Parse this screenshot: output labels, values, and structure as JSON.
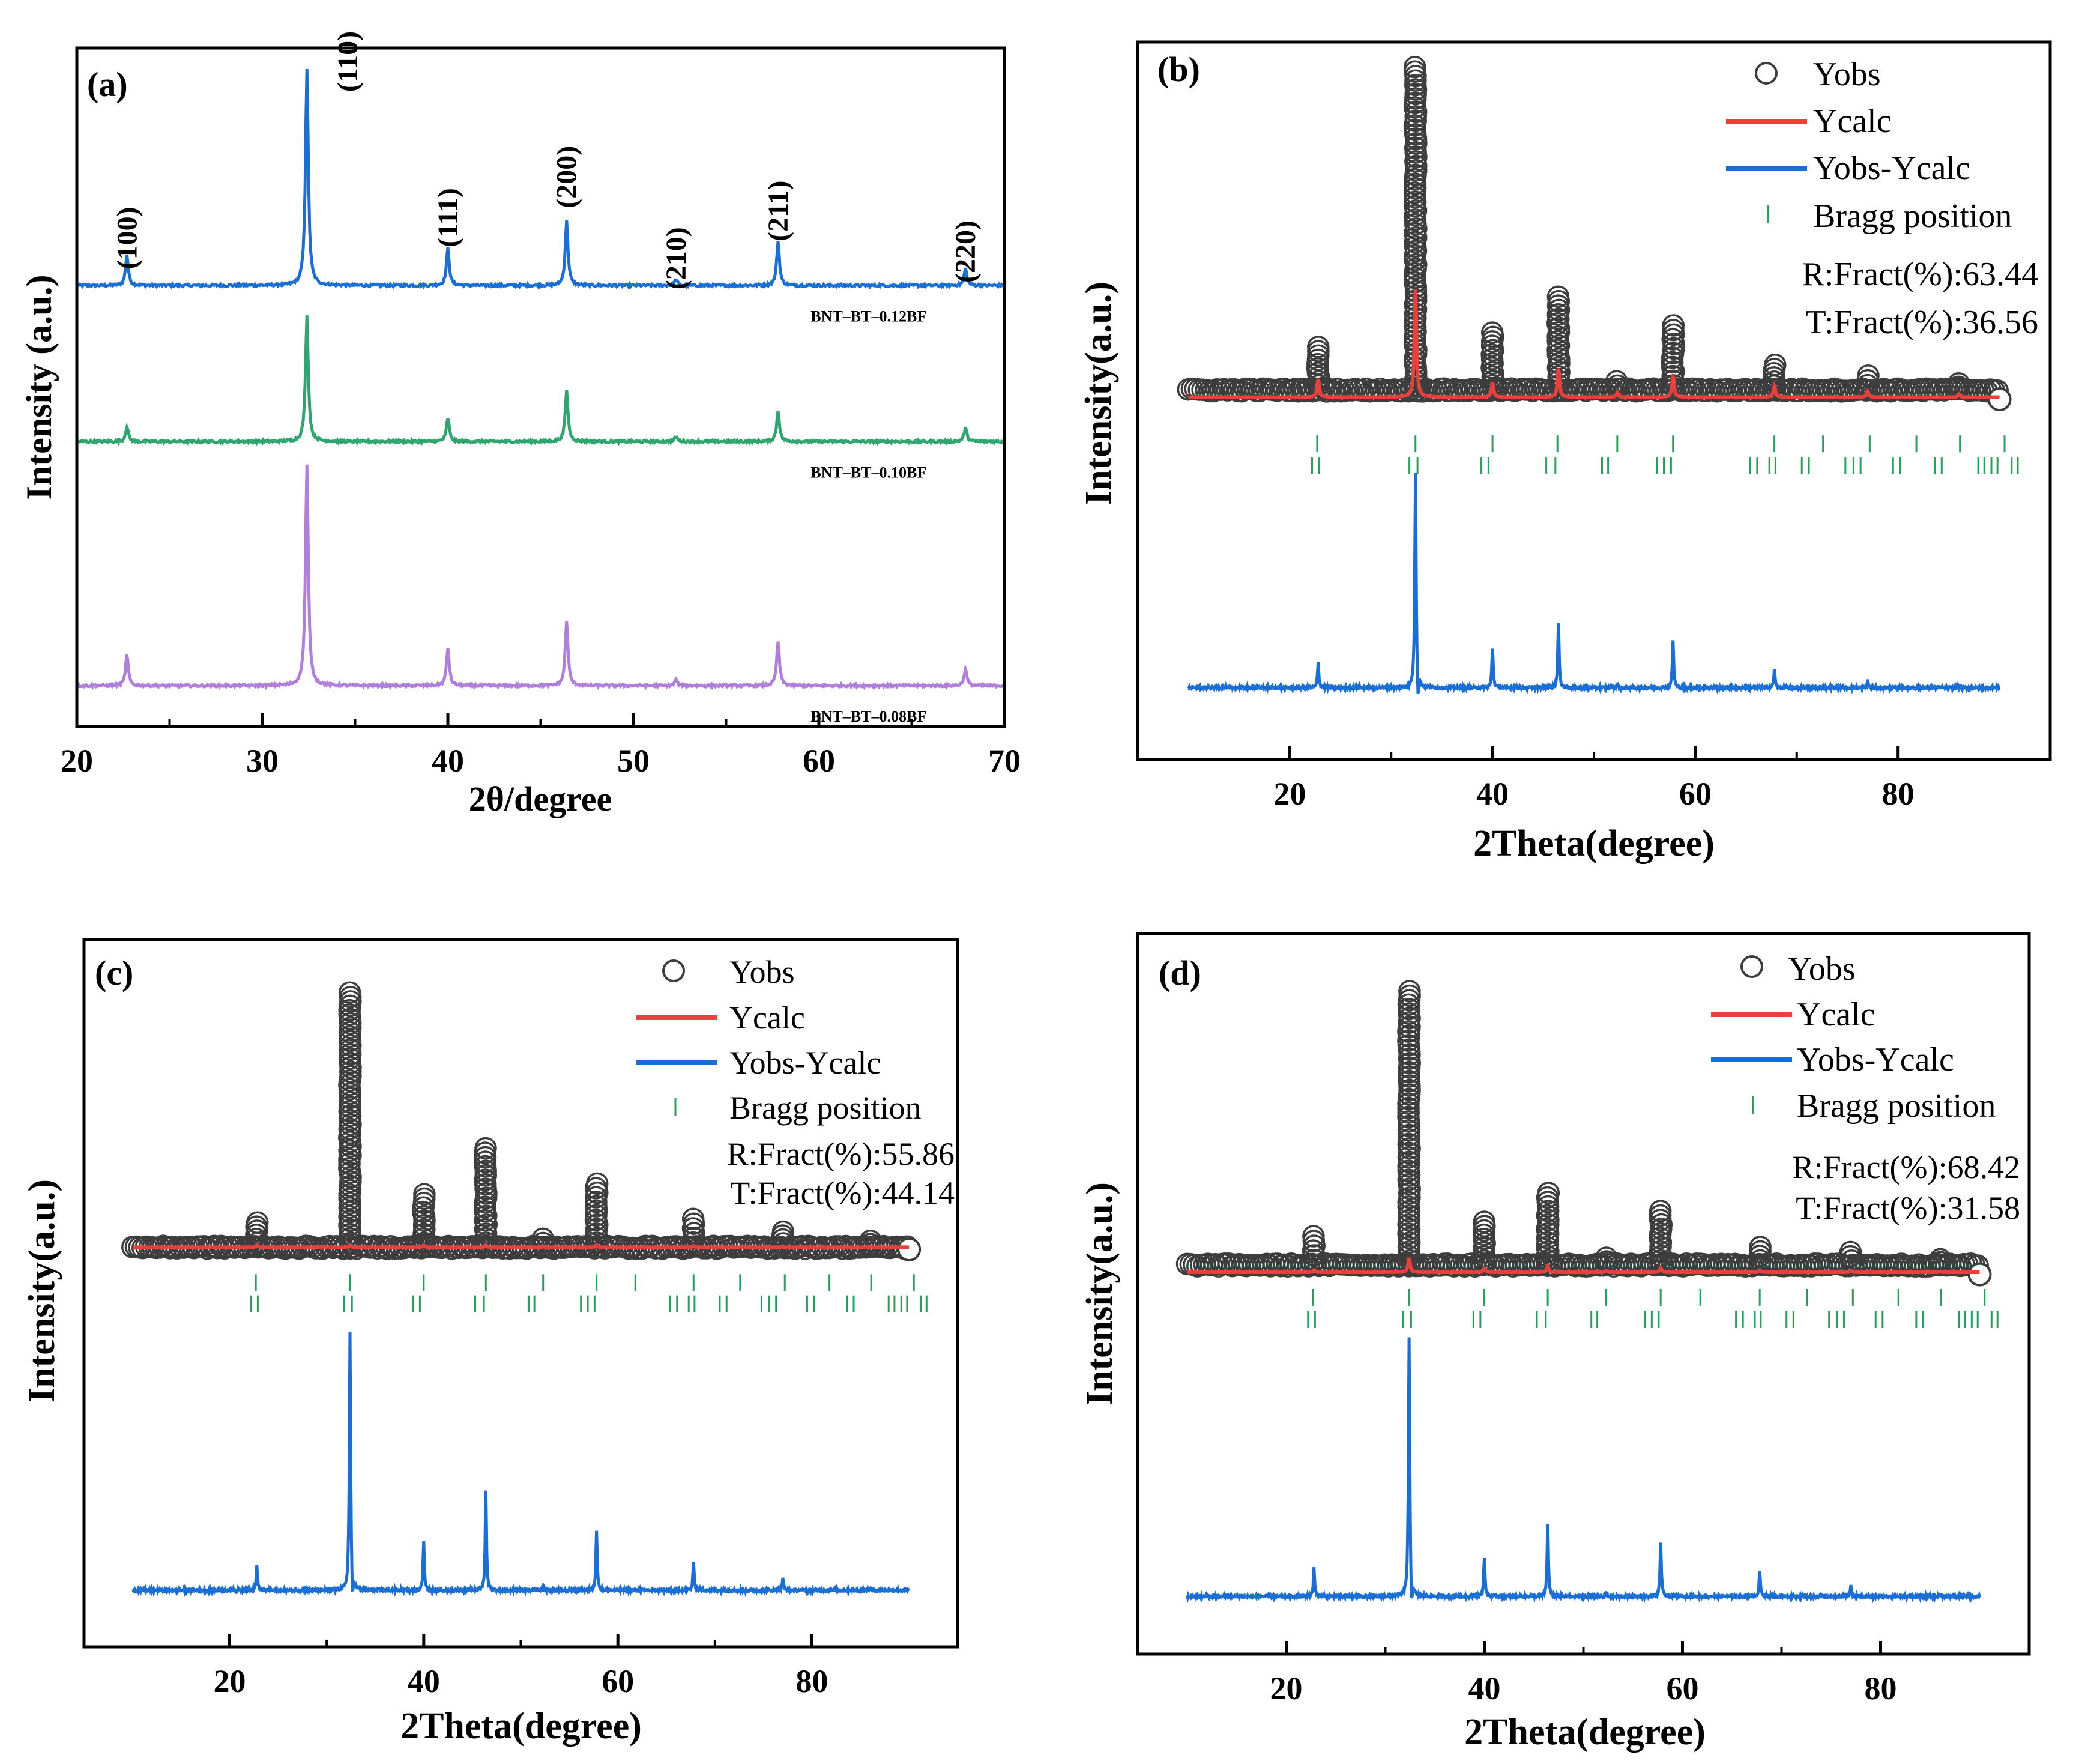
{
  "colors": {
    "blue": "#1a6fd6",
    "green": "#2fa56f",
    "purple": "#b07fdc",
    "red": "#e8413c",
    "obs": "#3d3d3d",
    "bragg": "#23a15a",
    "axis": "#000000"
  },
  "chart_data": [
    {
      "id": "a",
      "type": "line",
      "panel_label": "(a)",
      "title": "",
      "xlabel": "2θ/degree",
      "ylabel": "Intensity (a.u.)",
      "xlim": [
        20,
        70
      ],
      "xticks": [
        20,
        30,
        40,
        50,
        60,
        70
      ],
      "ylim": [
        0,
        100
      ],
      "y_ticks_labeled": false,
      "grid": false,
      "series": [
        {
          "name": "BNT–BT–0.12BF",
          "color_key": "blue",
          "baseline": 65,
          "peaks": [
            {
              "x": 22.7,
              "h": 4.5
            },
            {
              "x": 32.4,
              "h": 32
            },
            {
              "x": 40.0,
              "h": 5.5
            },
            {
              "x": 46.4,
              "h": 9.5
            },
            {
              "x": 52.3,
              "h": 0.9
            },
            {
              "x": 57.8,
              "h": 6.5
            },
            {
              "x": 67.9,
              "h": 2.5
            }
          ]
        },
        {
          "name": "BNT–BT–0.10BF",
          "color_key": "green",
          "baseline": 42,
          "peaks": [
            {
              "x": 22.7,
              "h": 2.2
            },
            {
              "x": 32.4,
              "h": 18.5
            },
            {
              "x": 40.0,
              "h": 3.5
            },
            {
              "x": 46.4,
              "h": 7.5
            },
            {
              "x": 52.3,
              "h": 0.7
            },
            {
              "x": 57.8,
              "h": 4.5
            },
            {
              "x": 67.9,
              "h": 2
            }
          ]
        },
        {
          "name": "BNT–BT–0.08BF",
          "color_key": "purple",
          "baseline": 6,
          "peaks": [
            {
              "x": 22.7,
              "h": 4.5
            },
            {
              "x": 32.4,
              "h": 32.5
            },
            {
              "x": 40.0,
              "h": 5.5
            },
            {
              "x": 46.4,
              "h": 9.5
            },
            {
              "x": 52.3,
              "h": 0.9
            },
            {
              "x": 57.8,
              "h": 6.5
            },
            {
              "x": 67.9,
              "h": 2.5
            }
          ]
        }
      ],
      "annotations": [
        {
          "text": "(100)",
          "x": 22.7,
          "y": 72
        },
        {
          "text": "(110)",
          "x": 34.6,
          "y": 98
        },
        {
          "text": "(111)",
          "x": 40.0,
          "y": 75
        },
        {
          "text": "(200)",
          "x": 46.4,
          "y": 81
        },
        {
          "text": "(210)",
          "x": 52.3,
          "y": 69
        },
        {
          "text": "(211)",
          "x": 57.8,
          "y": 76
        },
        {
          "text": "(220)",
          "x": 67.9,
          "y": 70
        }
      ]
    },
    {
      "id": "b",
      "type": "line",
      "panel_label": "(b)",
      "xlabel": "2Theta(degree)",
      "ylabel": "Intensity(a.u.)",
      "xlim": [
        5,
        95
      ],
      "xticks": [
        20,
        40,
        60,
        80
      ],
      "ylim": [
        0,
        100
      ],
      "y_ticks_labeled": false,
      "legend": [
        "Yobs",
        "Ycalc",
        "Yobs-Ycalc",
        "Bragg position"
      ],
      "legend_position": "top-right",
      "fractions": [
        "R:Fract(%):63.44",
        "T:Fract(%):36.56"
      ],
      "x_range": [
        10,
        90
      ],
      "obs_baseline": 51.5,
      "calc_baseline": 50.5,
      "diff_baseline": 10,
      "peaks": [
        {
          "x": 22.8,
          "obs": 6,
          "calc": 2.5,
          "diff": 3.5
        },
        {
          "x": 32.4,
          "obs": 45,
          "calc": 15,
          "diff": 30
        },
        {
          "x": 40.0,
          "obs": 8,
          "calc": 2,
          "diff": 5.5
        },
        {
          "x": 46.5,
          "obs": 13,
          "calc": 4,
          "diff": 9
        },
        {
          "x": 52.3,
          "obs": 1.2,
          "calc": 0.6,
          "diff": 0.5
        },
        {
          "x": 57.8,
          "obs": 9,
          "calc": 3,
          "diff": 6.5
        },
        {
          "x": 67.8,
          "obs": 3.5,
          "calc": 1.5,
          "diff": 2.5
        },
        {
          "x": 77.0,
          "obs": 2,
          "calc": 0.8,
          "diff": 1
        },
        {
          "x": 86.0,
          "obs": 0.9,
          "calc": 0.4,
          "diff": 0.3
        }
      ],
      "bragg_rows_y": [
        44,
        41
      ],
      "bragg_phase1": [
        22.7,
        32.4,
        40.0,
        46.4,
        52.3,
        57.8,
        67.8,
        72.6,
        77.2,
        81.8,
        86.1,
        90.5
      ],
      "bragg_phase2": [
        22.2,
        22.9,
        31.8,
        32.6,
        38.9,
        39.6,
        45.3,
        46.2,
        50.8,
        51.4,
        56.2,
        56.9,
        57.6,
        65.4,
        66.1,
        67.3,
        67.9,
        70.5,
        71.2,
        74.8,
        75.6,
        76.3,
        79.5,
        80.2,
        83.6,
        84.3,
        87.9,
        88.5,
        89.2,
        89.8,
        91.2,
        91.8
      ]
    },
    {
      "id": "c",
      "type": "line",
      "panel_label": "(c)",
      "xlabel": "2Theta(degree)",
      "ylabel": "Intensity(a.u.)",
      "xlim": [
        5,
        95
      ],
      "xticks": [
        20,
        40,
        60,
        80
      ],
      "ylim": [
        0,
        100
      ],
      "y_ticks_labeled": false,
      "legend": [
        "Yobs",
        "Ycalc",
        "Yobs-Ycalc",
        "Bragg position"
      ],
      "legend_position": "top-right",
      "fractions": [
        "R:Fract(%):55.86",
        "T:Fract(%):44.14"
      ],
      "x_range": [
        10,
        90
      ],
      "obs_baseline": 56.5,
      "calc_baseline": 56.5,
      "diff_baseline": 8,
      "peaks": [
        {
          "x": 22.8,
          "obs": 3.5,
          "calc": 0.3,
          "diff": 3.5
        },
        {
          "x": 32.4,
          "obs": 36,
          "calc": 0.3,
          "diff": 36.5
        },
        {
          "x": 40.0,
          "obs": 7.5,
          "calc": 0.3,
          "diff": 7
        },
        {
          "x": 46.4,
          "obs": 14,
          "calc": 0.3,
          "diff": 14
        },
        {
          "x": 52.3,
          "obs": 1.2,
          "calc": 0.1,
          "diff": 0.8
        },
        {
          "x": 57.8,
          "obs": 9,
          "calc": 0.3,
          "diff": 8.5
        },
        {
          "x": 67.8,
          "obs": 4,
          "calc": 0.2,
          "diff": 4
        },
        {
          "x": 77.0,
          "obs": 2.2,
          "calc": 0.1,
          "diff": 1.8
        },
        {
          "x": 86.0,
          "obs": 0.9,
          "calc": 0.1,
          "diff": 0.4
        }
      ],
      "bragg_rows_y": [
        51.5,
        48.5
      ],
      "bragg_phase1": [
        22.7,
        32.4,
        40.0,
        46.4,
        52.3,
        57.8,
        61.8,
        67.8,
        72.6,
        77.2,
        81.8,
        86.1,
        90.5
      ],
      "bragg_phase2": [
        22.2,
        22.9,
        31.8,
        32.6,
        38.9,
        39.6,
        45.3,
        46.2,
        50.8,
        51.4,
        56.2,
        56.9,
        57.6,
        65.4,
        66.1,
        67.3,
        67.9,
        70.5,
        71.2,
        74.8,
        75.6,
        76.3,
        79.5,
        80.2,
        83.6,
        84.3,
        87.9,
        88.5,
        89.2,
        89.8,
        91.2,
        91.8
      ]
    },
    {
      "id": "d",
      "type": "line",
      "panel_label": "(d)",
      "xlabel": "2Theta(degree)",
      "ylabel": "Intensity(a.u.)",
      "xlim": [
        5,
        95
      ],
      "xticks": [
        20,
        40,
        60,
        80
      ],
      "ylim": [
        0,
        100
      ],
      "y_ticks_labeled": false,
      "legend": [
        "Yobs",
        "Ycalc",
        "Yobs-Ycalc",
        "Bragg position"
      ],
      "legend_position": "top-right",
      "fractions": [
        "R:Fract(%):68.42",
        "T:Fract(%):31.58"
      ],
      "x_range": [
        10,
        90
      ],
      "obs_baseline": 54,
      "calc_baseline": 53,
      "diff_baseline": 8,
      "peaks": [
        {
          "x": 22.8,
          "obs": 4,
          "calc": 0.3,
          "diff": 4
        },
        {
          "x": 32.4,
          "obs": 38,
          "calc": 2,
          "diff": 36
        },
        {
          "x": 40.0,
          "obs": 6,
          "calc": 0.5,
          "diff": 5.5
        },
        {
          "x": 46.4,
          "obs": 10,
          "calc": 0.8,
          "diff": 10
        },
        {
          "x": 52.3,
          "obs": 1,
          "calc": 0.2,
          "diff": 0.6
        },
        {
          "x": 57.8,
          "obs": 7.5,
          "calc": 0.6,
          "diff": 7.5
        },
        {
          "x": 67.8,
          "obs": 2.5,
          "calc": 0.3,
          "diff": 3.5
        },
        {
          "x": 77.0,
          "obs": 1.8,
          "calc": 0.2,
          "diff": 1.5
        },
        {
          "x": 86.0,
          "obs": 0.8,
          "calc": 0.1,
          "diff": 0.3
        }
      ],
      "bragg_rows_y": [
        49.5,
        46.5
      ],
      "bragg_phase1": [
        22.7,
        32.4,
        40.0,
        46.4,
        52.3,
        57.8,
        61.8,
        67.8,
        72.6,
        77.2,
        81.8,
        86.1,
        90.5
      ],
      "bragg_phase2": [
        22.2,
        22.9,
        31.8,
        32.6,
        38.9,
        39.6,
        45.3,
        46.2,
        50.8,
        51.4,
        56.2,
        56.9,
        57.6,
        65.4,
        66.1,
        67.3,
        67.9,
        70.5,
        71.2,
        74.8,
        75.6,
        76.3,
        79.5,
        80.2,
        83.6,
        84.3,
        87.9,
        88.5,
        89.2,
        89.8,
        91.2,
        91.8
      ]
    }
  ]
}
